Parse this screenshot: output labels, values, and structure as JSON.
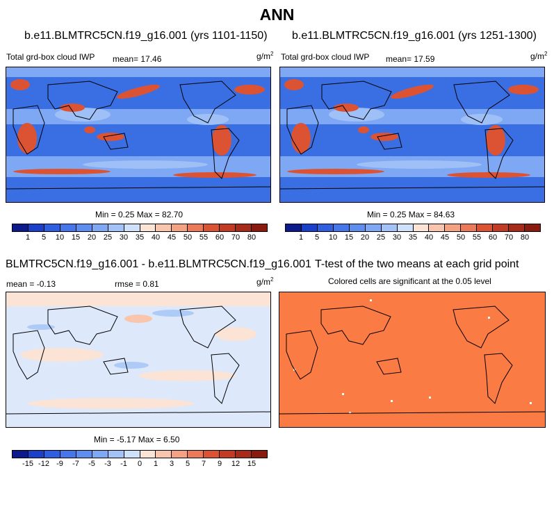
{
  "main_title": "ANN",
  "colors": {
    "ocean_bg": "#3a6fe3",
    "land_line": "#000000",
    "sig_fill": "#fb7b44",
    "diff_bg": "#dde8fb"
  },
  "panels": [
    {
      "title": "b.e11.BLMTRC5CN.f19_g16.001 (yrs 1101-1150)",
      "left_label": "Total grd-box cloud IWP",
      "mean_text": "mean=  17.46",
      "unit_base": "g/m",
      "unit_exp": "2",
      "stats": "Min =   0.25 Max =  82.70"
    },
    {
      "title": "b.e11.BLMTRC5CN.f19_g16.001 (yrs 1251-1300)",
      "left_label": "Total grd-box cloud IWP",
      "mean_text": "mean=  17.59",
      "unit_base": "g/m",
      "unit_exp": "2",
      "stats": "Min =   0.25 Max =  84.63"
    },
    {
      "title": "BLMTRC5CN.f19_g16.001 - b.e11.BLMTRC5CN.f19_g16.001",
      "mean_text": "mean =  -0.13",
      "rmse_text": "rmse =   0.81",
      "unit_base": "g/m",
      "unit_exp": "2",
      "stats": "Min =  -5.17 Max =   6.50"
    },
    {
      "title": "T-test of the two means at each grid point",
      "subtitle": "Colored cells are significant at the 0.05 level"
    }
  ],
  "chart_data": [
    {
      "type": "heatmap",
      "title": "b.e11.BLMTRC5CN.f19_g16.001 (yrs 1101-1150)",
      "variable": "Total grd-box cloud IWP",
      "unit": "g/m2",
      "mean": 17.46,
      "min": 0.25,
      "max": 82.7,
      "colorbar_levels": [
        1,
        5,
        10,
        15,
        20,
        25,
        30,
        35,
        40,
        45,
        50,
        55,
        60,
        70,
        80
      ]
    },
    {
      "type": "heatmap",
      "title": "b.e11.BLMTRC5CN.f19_g16.001 (yrs 1251-1300)",
      "variable": "Total grd-box cloud IWP",
      "unit": "g/m2",
      "mean": 17.59,
      "min": 0.25,
      "max": 84.63,
      "colorbar_levels": [
        1,
        5,
        10,
        15,
        20,
        25,
        30,
        35,
        40,
        45,
        50,
        55,
        60,
        70,
        80
      ]
    },
    {
      "type": "heatmap",
      "title": "BLMTRC5CN.f19_g16.001 - b.e11.BLMTRC5CN.f19_g16.001",
      "unit": "g/m2",
      "mean": -0.13,
      "rmse": 0.81,
      "min": -5.17,
      "max": 6.5,
      "colorbar_levels": [
        -15,
        -12,
        -9,
        -7,
        -5,
        -3,
        -1,
        0,
        1,
        3,
        5,
        7,
        9,
        12,
        15
      ]
    },
    {
      "type": "heatmap",
      "title": "T-test of the two means at each grid point",
      "subtitle": "Colored cells are significant at the 0.05 level"
    }
  ],
  "colorbars": {
    "abs": {
      "labels": [
        "1",
        "5",
        "10",
        "15",
        "20",
        "25",
        "30",
        "35",
        "40",
        "45",
        "50",
        "55",
        "60",
        "70",
        "80"
      ],
      "colors": [
        "#0c1a8c",
        "#1a3fc8",
        "#2e5fe0",
        "#4577ea",
        "#5e8ef0",
        "#7fa8f4",
        "#a3c3f8",
        "#cfe0fb",
        "#fbe3d6",
        "#f9c6ad",
        "#f5a283",
        "#ec7a58",
        "#dc5334",
        "#c23b22",
        "#a82a18",
        "#8a1a0e"
      ]
    },
    "diff": {
      "labels": [
        "-15",
        "-12",
        "-9",
        "-7",
        "-5",
        "-3",
        "-1",
        "0",
        "1",
        "3",
        "5",
        "7",
        "9",
        "12",
        "15"
      ],
      "colors": [
        "#0c1a8c",
        "#1a3fc8",
        "#2e5fe0",
        "#4577ea",
        "#5e8ef0",
        "#7fa8f4",
        "#a3c3f8",
        "#cfe0fb",
        "#fbe3d6",
        "#f9c6ad",
        "#f5a283",
        "#ec7a58",
        "#dc5334",
        "#c23b22",
        "#a82a18",
        "#8a1a0e"
      ]
    }
  }
}
